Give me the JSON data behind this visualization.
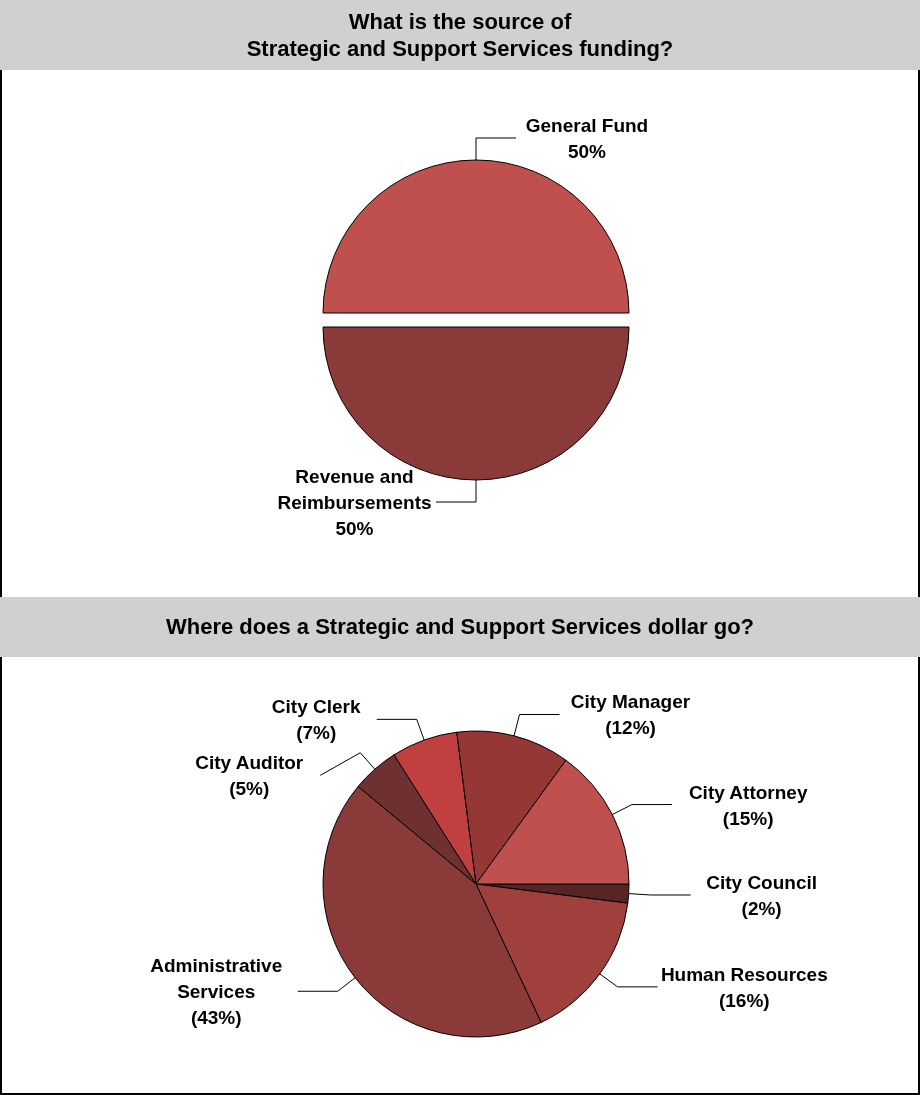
{
  "chart_data": [
    {
      "type": "pie",
      "title": "What is the source of\nStrategic and Support Services funding?",
      "categories": [
        "General Fund",
        "Revenue and Reimbursements"
      ],
      "values": [
        50,
        50
      ],
      "value_labels": [
        "50%",
        "50%"
      ],
      "colors": [
        "#c0504d",
        "#8b3a3a"
      ]
    },
    {
      "type": "pie",
      "title": "Where does a Strategic and Support Services dollar go?",
      "categories": [
        "City Council",
        "Human Resources",
        "Administrative Services",
        "City Auditor",
        "City Clerk",
        "City Manager",
        "City Attorney"
      ],
      "values": [
        2,
        16,
        43,
        5,
        7,
        12,
        15
      ],
      "value_labels": [
        "(2%)",
        "(16%)",
        "(43%)",
        "(5%)",
        "(7%)",
        "(12%)",
        "(15%)"
      ],
      "colors": [
        "#5a2424",
        "#a0403c",
        "#8b3a3a",
        "#6e3030",
        "#c0403f",
        "#953735",
        "#c0504d"
      ]
    }
  ]
}
